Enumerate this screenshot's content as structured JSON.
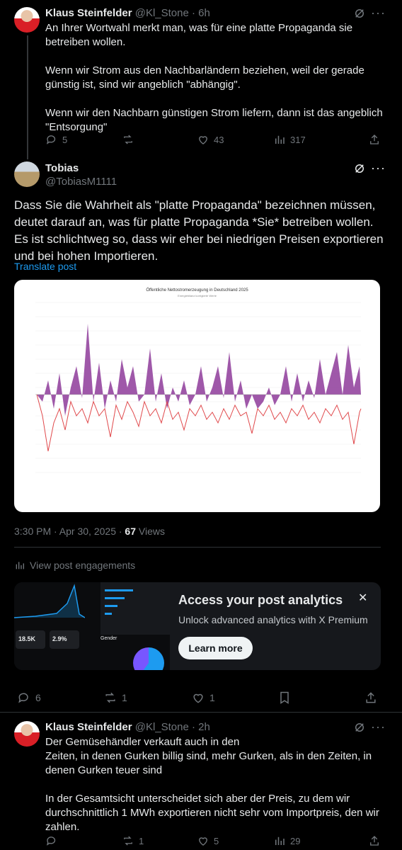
{
  "post1": {
    "author_name": "Klaus Steinfelder",
    "handle": "@Kl_Stone",
    "time": "· 6h",
    "text": "An Ihrer Wortwahl merkt man, was für eine platte Propaganda sie betreiben wollen.\n\nWenn wir Strom aus den Nachbarländern beziehen, weil der gerade günstig ist, sind wir angeblich \"abhängig\".\n\nWenn wir den Nachbarn günstigen Strom liefern, dann ist das angeblich \"Entsorgung\"",
    "replies": "5",
    "reposts": "",
    "likes": "43",
    "views": "317"
  },
  "post2": {
    "author_name": "Tobias",
    "handle": "@TobiasM1111",
    "text": "Dass Sie die Wahrheit als \"platte Propaganda\" bezeichnen müssen, deutet darauf an, was für platte Propaganda *Sie* betreiben wollen. Es ist schlichtweg so, dass wir eher bei niedrigen Preisen exportieren und bei hohen Importieren.",
    "translate": "Translate post",
    "chart_title": "Öffentliche Nettostromerzeugung in Deutschland 2025",
    "chart_subtitle": "Energiebilanz korrigierte Werte",
    "timestamp": "3:30 PM · Apr 30, 2025 · ",
    "view_count": "67",
    "views_label": " Views",
    "engagements": "View post engagements",
    "replies": "6",
    "reposts": "1",
    "likes": "1"
  },
  "promo": {
    "title": "Access your post analytics",
    "subtitle": "Unlock advanced analytics with X Premium",
    "button": "Learn more",
    "stat1": "18.5K",
    "stat2": "2.9%",
    "gender_label": "Gender"
  },
  "post3": {
    "author_name": "Klaus Steinfelder",
    "handle": "@Kl_Stone",
    "time": "· 2h",
    "text": "Der Gemüsehändler verkauft auch in den\nZeiten, in denen Gurken billig sind, mehr Gurken, als in den Zeiten, in denen Gurken teuer sind\n\nIn der Gesamtsicht unterscheidet sich aber der Preis, zu dem wir durchschnittlich 1 MWh exportieren nicht sehr vom Importpreis, den wir zahlen.",
    "replies": "",
    "reposts": "1",
    "likes": "5",
    "views": "29"
  },
  "colors": {
    "accent": "#1d9bf0",
    "export": "#8e3b9a",
    "price": "#e0484b"
  }
}
